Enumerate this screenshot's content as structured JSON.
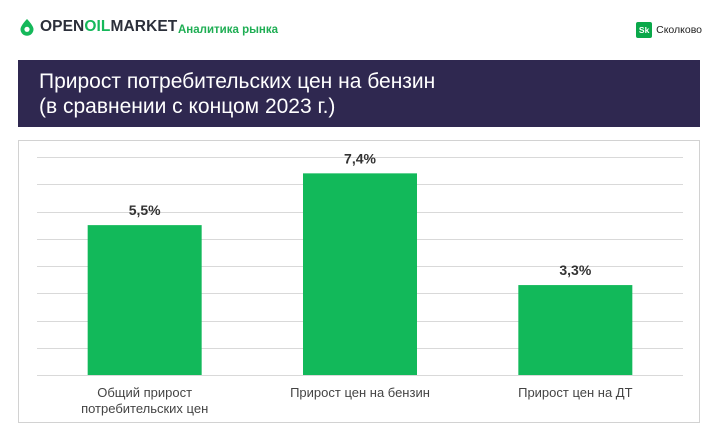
{
  "header": {
    "brand_part1": "OPEN",
    "brand_part2": "OIL",
    "brand_part3": "MARKET",
    "subtitle": "Аналитика рынка",
    "partner_badge": "Sk",
    "partner_name": "Сколково",
    "brand_color": "#15b85a"
  },
  "banner": {
    "title": "Прирост потребительских цен на бензин\n(в сравнении с концом 2023 г.)",
    "background": "#2f2850"
  },
  "chart_data": {
    "type": "bar",
    "categories": [
      [
        "Общий прирост",
        "потребительских цен"
      ],
      [
        "Прирост цен на бензин"
      ],
      [
        "Прирост цен на ДТ"
      ]
    ],
    "values": [
      5.5,
      7.4,
      3.3
    ],
    "value_labels": [
      "5,5%",
      "7,4%",
      "3,3%"
    ],
    "ylim": [
      0,
      8
    ],
    "grid": true,
    "bar_color": "#12b95a",
    "title": "",
    "xlabel": "",
    "ylabel": ""
  }
}
